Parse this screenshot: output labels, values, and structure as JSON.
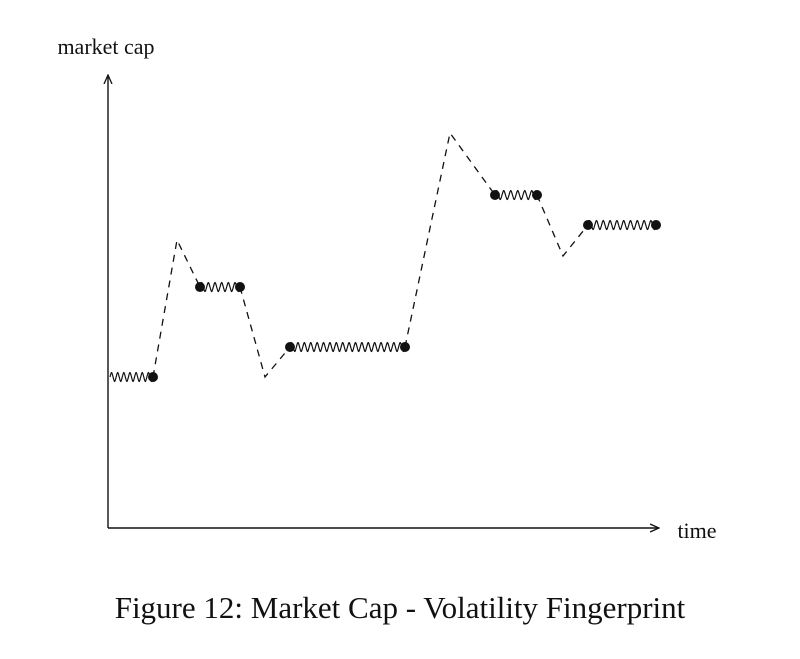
{
  "figure": {
    "y_axis_label": "market cap",
    "x_axis_label": "time",
    "caption": "Figure 12: Market Cap - Volatility Fingerprint"
  }
}
